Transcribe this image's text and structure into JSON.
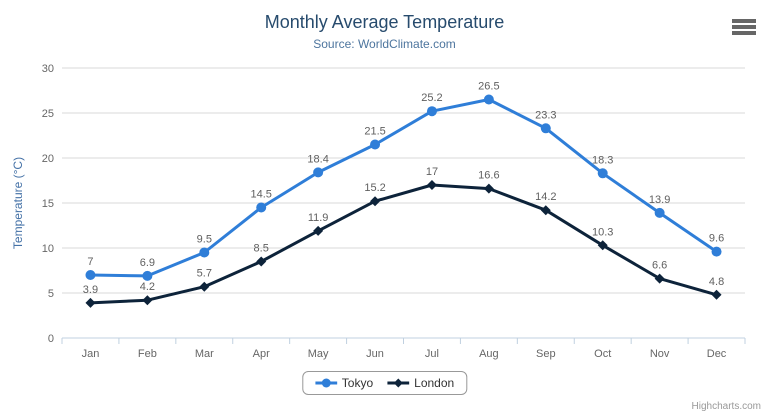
{
  "header": {
    "title": "Monthly Average Temperature",
    "subtitle": "Source: WorldClimate.com"
  },
  "credits_label": "Highcharts.com",
  "menu_icon": "hamburger-menu",
  "colors": {
    "title": "#274b6d",
    "subtitle": "#4d759e",
    "axis_title": "#4572a7",
    "axis_labels": "#666666",
    "data_labels": "#606060",
    "gridline": "#d8d8d8",
    "axis_line": "#c0d0e0",
    "legend_border": "#999999",
    "menu_icon": "#666666",
    "credits": "#999999"
  },
  "chart_data": {
    "type": "line",
    "title": "Monthly Average Temperature",
    "subtitle": "Source: WorldClimate.com",
    "categories": [
      "Jan",
      "Feb",
      "Mar",
      "Apr",
      "May",
      "Jun",
      "Jul",
      "Aug",
      "Sep",
      "Oct",
      "Nov",
      "Dec"
    ],
    "xlabel": "",
    "ylabel": "Temperature (°C)",
    "ylim": [
      0,
      30
    ],
    "yticks": [
      0,
      5,
      10,
      15,
      20,
      25,
      30
    ],
    "grid": true,
    "legend_position": "bottom",
    "data_labels_shown": true,
    "series": [
      {
        "name": "Tokyo",
        "color": "#2f7ed8",
        "marker": "circle",
        "values": [
          7,
          6.9,
          9.5,
          14.5,
          18.4,
          21.5,
          25.2,
          26.5,
          23.3,
          18.3,
          13.9,
          9.6
        ]
      },
      {
        "name": "London",
        "color": "#0d233a",
        "marker": "diamond",
        "values": [
          3.9,
          4.2,
          5.7,
          8.5,
          11.9,
          15.2,
          17,
          16.6,
          14.2,
          10.3,
          6.6,
          4.8
        ]
      }
    ]
  }
}
